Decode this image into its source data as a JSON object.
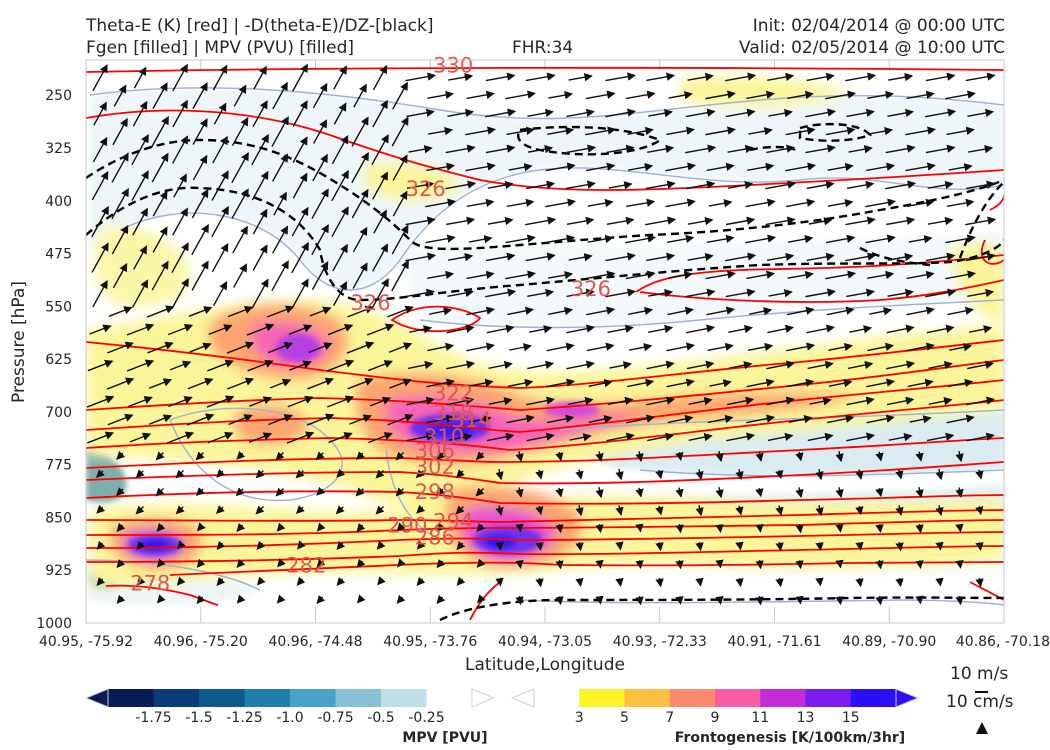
{
  "header": {
    "title_left_1": "Theta-E (K) [red] | -D(theta-E)/DZ-[black]",
    "title_left_2": "Fgen [filled] | MPV (PVU) [filled]",
    "title_center": "FHR:34",
    "title_right_1": "Init: 02/04/2014 @ 00:00 UTC",
    "title_right_2": "Valid: 02/05/2014 @ 10:00 UTC"
  },
  "reference_vectors": {
    "horizontal": "10 m/s",
    "vertical": "10 cm/s"
  },
  "chart_data": {
    "type": "cross-section",
    "xlabel": "Latitude,Longitude",
    "ylabel": "Pressure [hPa]",
    "x_ticks": [
      "40.95, -75.92",
      "40.96, -75.20",
      "40.96, -74.48",
      "40.95, -73.76",
      "40.94, -73.05",
      "40.93, -72.33",
      "40.91, -71.61",
      "40.89, -70.90",
      "40.86, -70.18"
    ],
    "y_ticks": [
      250,
      325,
      400,
      475,
      550,
      625,
      700,
      775,
      850,
      925,
      1000
    ],
    "ylim": [
      1000,
      200
    ],
    "grid": true,
    "theta_e_contours": {
      "color": "#ff0000",
      "labels": [
        {
          "value": "330",
          "x_frac": 0.4,
          "p": 209
        },
        {
          "value": "326",
          "x_frac": 0.37,
          "p": 385
        },
        {
          "value": "326",
          "x_frac": 0.55,
          "p": 527
        },
        {
          "value": "326",
          "x_frac": 0.31,
          "p": 547
        },
        {
          "value": "322",
          "x_frac": 0.4,
          "p": 675
        },
        {
          "value": "318",
          "x_frac": 0.4,
          "p": 703
        },
        {
          "value": "314",
          "x_frac": 0.42,
          "p": 713
        },
        {
          "value": "310",
          "x_frac": 0.39,
          "p": 737
        },
        {
          "value": "306",
          "x_frac": 0.38,
          "p": 757
        },
        {
          "value": "302",
          "x_frac": 0.38,
          "p": 780
        },
        {
          "value": "298",
          "x_frac": 0.38,
          "p": 815
        },
        {
          "value": "294",
          "x_frac": 0.4,
          "p": 857
        },
        {
          "value": "290",
          "x_frac": 0.35,
          "p": 863
        },
        {
          "value": "286",
          "x_frac": 0.38,
          "p": 880
        },
        {
          "value": "282",
          "x_frac": 0.24,
          "p": 920
        },
        {
          "value": "278",
          "x_frac": 0.07,
          "p": 945
        }
      ]
    },
    "mpv_colorbar": {
      "label": "MPV [PVU]",
      "ticks": [
        "-1.75",
        "-1.5",
        "-1.25",
        "-1.0",
        "-0.75",
        "-0.5",
        "-0.25"
      ],
      "colors": [
        "#081d58",
        "#0b3c7a",
        "#0e5a8f",
        "#1f7fa8",
        "#4aa2c4",
        "#86c1d8",
        "#bedfe8",
        "#ffffff"
      ]
    },
    "fgen_colorbar": {
      "label": "Frontogenesis [K/100km/3hr]",
      "ticks": [
        "3",
        "5",
        "7",
        "9",
        "11",
        "13",
        "15"
      ],
      "colors": [
        "#ffffff",
        "#fdf226",
        "#fcc040",
        "#fb8a6e",
        "#f85ea8",
        "#c22bd6",
        "#7a1bf0",
        "#2b10f7"
      ]
    }
  }
}
